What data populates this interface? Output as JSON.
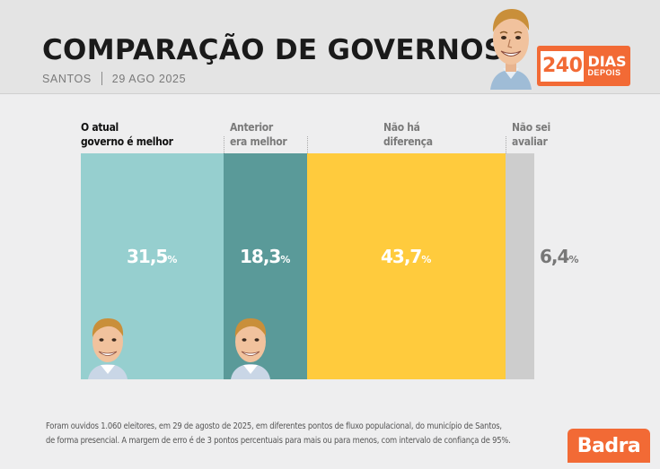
{
  "header": {
    "title": "COMPARAÇÃO DE GOVERNOS",
    "location": "SANTOS",
    "date": "29 AGO 2025"
  },
  "badge": {
    "number": "240",
    "line1": "DIAS",
    "line2": "DEPOIS"
  },
  "chart_data": {
    "type": "bar",
    "orientation": "stacked-horizontal-100",
    "categories": [
      "O atual governo é melhor",
      "Anterior era melhor",
      "Não há diferença",
      "Não sei avaliar"
    ],
    "category_lines": [
      [
        "O atual",
        "governo é melhor"
      ],
      [
        "Anterior",
        "era melhor"
      ],
      [
        "Não há",
        "diferença"
      ],
      [
        "Não sei",
        "avaliar"
      ]
    ],
    "values": [
      31.5,
      18.3,
      43.7,
      6.4
    ],
    "value_labels": [
      "31,5",
      "18,3",
      "43,7",
      "6,4"
    ],
    "unit": "%",
    "colors": [
      "#96cfcf",
      "#5a9a99",
      "#ffcb3d",
      "#cdcdcd"
    ],
    "label_colors": [
      "#111111",
      "#7a7a7a",
      "#7a7a7a",
      "#7a7a7a"
    ],
    "value_colors": [
      "#ffffff",
      "#ffffff",
      "#ffffff",
      "#777777"
    ]
  },
  "footnote": {
    "line1": "Foram ouvidos 1.060 eleitores, em 29 de agosto de 2025, em diferentes pontos de fluxo populacional, do município de Santos,",
    "line2": "de forma presencial. A margem de erro é de 3 pontos percentuais para mais ou para menos, com intervalo de confiança de 95%."
  },
  "brand": "Badra"
}
